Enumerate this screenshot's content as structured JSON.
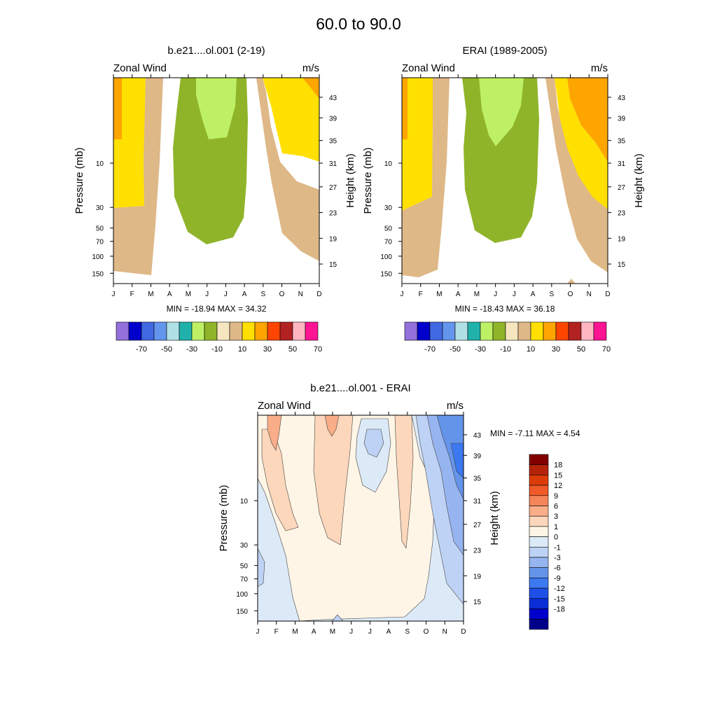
{
  "figure_title": "60.0 to  90.0",
  "months": [
    "J",
    "F",
    "M",
    "A",
    "M",
    "J",
    "J",
    "A",
    "S",
    "O",
    "N",
    "D"
  ],
  "pressure_ticks": [
    "10",
    "30",
    "50",
    "70",
    "100",
    "150"
  ],
  "height_ticks": [
    "43",
    "39",
    "35",
    "31",
    "27",
    "23",
    "19",
    "15"
  ],
  "left_axis_label": "Pressure (mb)",
  "right_axis_label": "Height (km)",
  "variable_label": "Zonal Wind",
  "units_label": "m/s",
  "colors": {
    "wind_palette": [
      "#9370db",
      "#0000cd",
      "#4169e1",
      "#6495ed",
      "#b0e0e6",
      "#20b2aa",
      "#bdf065",
      "#8fb42a",
      "#f5e6c0",
      "#deb887",
      "#ffe000",
      "#ffa500",
      "#ff4500",
      "#b22222",
      "#ffb6c1",
      "#ff1493"
    ],
    "diff_palette": [
      "#00008b",
      "#0000cd",
      "#0a2fd6",
      "#1e50e8",
      "#3c78f0",
      "#6494ea",
      "#96b4f0",
      "#bed2f5",
      "#dceaf8",
      "#fff5e6",
      "#fcd7bb",
      "#f9ad88",
      "#f5855a",
      "#f05a28",
      "#dc3c0a",
      "#b4230a",
      "#820000"
    ]
  },
  "chart_data": [
    {
      "type": "heatmap",
      "title": "b.e21....ol.001 (2-19)",
      "variable": "Zonal Wind",
      "units": "m/s",
      "xlabel": "",
      "ylabel": "Pressure (mb)",
      "y2label": "Height (km)",
      "x": [
        "J",
        "F",
        "M",
        "A",
        "M",
        "J",
        "J",
        "A",
        "S",
        "O",
        "N",
        "D"
      ],
      "min_max_label": "MIN = -18.94  MAX =  34.32",
      "min": -18.94,
      "max": 34.32
    },
    {
      "type": "heatmap",
      "title": "ERAI (1989-2005)",
      "variable": "Zonal Wind",
      "units": "m/s",
      "xlabel": "",
      "ylabel": "Pressure (mb)",
      "y2label": "Height (km)",
      "x": [
        "J",
        "F",
        "M",
        "A",
        "M",
        "J",
        "J",
        "A",
        "S",
        "O",
        "N",
        "D"
      ],
      "min_max_label": "MIN = -18.43  MAX =  36.18",
      "min": -18.43,
      "max": 36.18
    },
    {
      "type": "heatmap",
      "title": "b.e21....ol.001 - ERAI",
      "variable": "Zonal Wind",
      "units": "m/s",
      "xlabel": "",
      "ylabel": "Pressure (mb)",
      "y2label": "Height (km)",
      "x": [
        "J",
        "F",
        "M",
        "A",
        "M",
        "J",
        "J",
        "A",
        "S",
        "O",
        "N",
        "D"
      ],
      "min_max_label": "MIN =  -7.11  MAX =   4.54",
      "min": -7.11,
      "max": 4.54
    }
  ],
  "wind_colorbar_labels": [
    "-70",
    "-50",
    "-30",
    "-10",
    "10",
    "30",
    "50",
    "70"
  ],
  "diff_colorbar_labels": [
    "18",
    "15",
    "12",
    "9",
    "6",
    "3",
    "1",
    "0",
    "-1",
    "-3",
    "-6",
    "-9",
    "-12",
    "-15",
    "-18"
  ]
}
